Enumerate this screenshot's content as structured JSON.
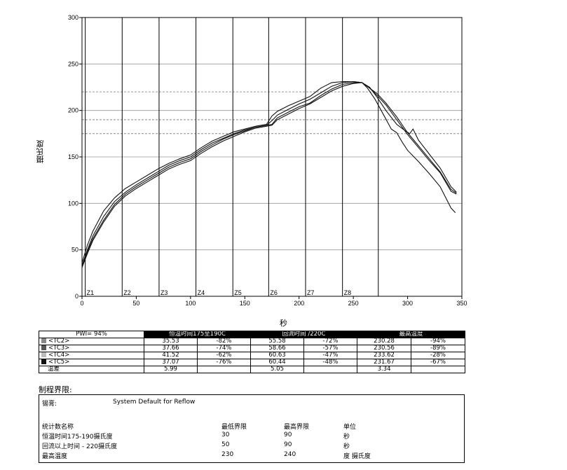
{
  "chart_data": {
    "type": "line",
    "title": "",
    "xlabel": "秒",
    "ylabel": "摄氏度",
    "xlim": [
      0,
      350
    ],
    "ylim": [
      0,
      300
    ],
    "x_ticks": [
      0,
      50,
      100,
      150,
      200,
      250,
      300,
      350
    ],
    "y_ticks": [
      0,
      50,
      100,
      150,
      200,
      250,
      300
    ],
    "zones": [
      {
        "label": "Z1",
        "x": 3
      },
      {
        "label": "Z2",
        "x": 37
      },
      {
        "label": "Z3",
        "x": 71
      },
      {
        "label": "Z4",
        "x": 105
      },
      {
        "label": "Z5",
        "x": 139
      },
      {
        "label": "Z6",
        "x": 172
      },
      {
        "label": "Z7",
        "x": 206
      },
      {
        "label": "Z8",
        "x": 240
      },
      {
        "label": "",
        "x": 273
      }
    ],
    "reference_lines": [
      175,
      190,
      220
    ],
    "series": [
      {
        "name": "<TC2>",
        "points": [
          [
            0,
            32
          ],
          [
            5,
            48
          ],
          [
            10,
            62
          ],
          [
            20,
            82
          ],
          [
            30,
            99
          ],
          [
            40,
            110
          ],
          [
            50,
            118
          ],
          [
            60,
            125
          ],
          [
            70,
            132
          ],
          [
            80,
            139
          ],
          [
            90,
            144
          ],
          [
            100,
            148
          ],
          [
            110,
            156
          ],
          [
            120,
            163
          ],
          [
            130,
            169
          ],
          [
            140,
            174
          ],
          [
            150,
            178
          ],
          [
            160,
            182
          ],
          [
            170,
            184
          ],
          [
            175,
            185
          ],
          [
            180,
            192
          ],
          [
            190,
            198
          ],
          [
            200,
            204
          ],
          [
            210,
            208
          ],
          [
            220,
            216
          ],
          [
            230,
            223
          ],
          [
            240,
            228
          ],
          [
            250,
            230
          ],
          [
            258,
            230
          ],
          [
            265,
            224
          ],
          [
            272,
            216
          ],
          [
            280,
            206
          ],
          [
            290,
            190
          ],
          [
            300,
            174
          ],
          [
            310,
            160
          ],
          [
            320,
            146
          ],
          [
            330,
            133
          ],
          [
            340,
            113
          ],
          [
            345,
            110
          ]
        ]
      },
      {
        "name": "<TC3>",
        "points": [
          [
            0,
            31
          ],
          [
            5,
            46
          ],
          [
            10,
            60
          ],
          [
            20,
            80
          ],
          [
            30,
            97
          ],
          [
            40,
            108
          ],
          [
            50,
            116
          ],
          [
            60,
            123
          ],
          [
            70,
            130
          ],
          [
            80,
            137
          ],
          [
            90,
            142
          ],
          [
            100,
            146
          ],
          [
            110,
            154
          ],
          [
            120,
            161
          ],
          [
            130,
            167
          ],
          [
            140,
            172
          ],
          [
            150,
            177
          ],
          [
            160,
            181
          ],
          [
            170,
            183
          ],
          [
            175,
            184
          ],
          [
            180,
            190
          ],
          [
            190,
            196
          ],
          [
            200,
            202
          ],
          [
            210,
            207
          ],
          [
            220,
            214
          ],
          [
            230,
            221
          ],
          [
            240,
            226
          ],
          [
            250,
            229
          ],
          [
            258,
            230
          ],
          [
            265,
            224
          ],
          [
            272,
            218
          ],
          [
            280,
            208
          ],
          [
            290,
            193
          ],
          [
            300,
            176
          ],
          [
            310,
            162
          ],
          [
            320,
            148
          ],
          [
            330,
            134
          ],
          [
            340,
            115
          ],
          [
            345,
            111
          ]
        ]
      },
      {
        "name": "<TC4>",
        "points": [
          [
            0,
            36
          ],
          [
            5,
            55
          ],
          [
            10,
            70
          ],
          [
            20,
            92
          ],
          [
            30,
            106
          ],
          [
            40,
            116
          ],
          [
            50,
            123
          ],
          [
            60,
            130
          ],
          [
            70,
            137
          ],
          [
            80,
            143
          ],
          [
            90,
            148
          ],
          [
            100,
            152
          ],
          [
            110,
            160
          ],
          [
            120,
            167
          ],
          [
            130,
            172
          ],
          [
            140,
            177
          ],
          [
            150,
            180
          ],
          [
            160,
            183
          ],
          [
            170,
            185
          ],
          [
            175,
            194
          ],
          [
            180,
            199
          ],
          [
            190,
            205
          ],
          [
            200,
            210
          ],
          [
            210,
            215
          ],
          [
            220,
            224
          ],
          [
            230,
            230
          ],
          [
            240,
            231
          ],
          [
            250,
            231
          ],
          [
            258,
            230
          ],
          [
            263,
            224
          ],
          [
            270,
            212
          ],
          [
            278,
            195
          ],
          [
            285,
            180
          ],
          [
            290,
            176
          ],
          [
            295,
            166
          ],
          [
            300,
            157
          ],
          [
            310,
            145
          ],
          [
            320,
            132
          ],
          [
            330,
            118
          ],
          [
            340,
            95
          ],
          [
            344,
            90
          ]
        ]
      },
      {
        "name": "<TC5>",
        "points": [
          [
            0,
            33
          ],
          [
            5,
            50
          ],
          [
            10,
            65
          ],
          [
            20,
            86
          ],
          [
            30,
            102
          ],
          [
            40,
            112
          ],
          [
            50,
            120
          ],
          [
            60,
            127
          ],
          [
            70,
            134
          ],
          [
            80,
            141
          ],
          [
            90,
            146
          ],
          [
            100,
            150
          ],
          [
            110,
            158
          ],
          [
            120,
            165
          ],
          [
            130,
            170
          ],
          [
            140,
            175
          ],
          [
            150,
            179
          ],
          [
            160,
            182
          ],
          [
            170,
            184
          ],
          [
            176,
            190
          ],
          [
            180,
            195
          ],
          [
            190,
            201
          ],
          [
            200,
            207
          ],
          [
            210,
            212
          ],
          [
            220,
            219
          ],
          [
            230,
            226
          ],
          [
            240,
            230
          ],
          [
            250,
            231
          ],
          [
            258,
            230
          ],
          [
            265,
            225
          ],
          [
            272,
            214
          ],
          [
            280,
            200
          ],
          [
            290,
            185
          ],
          [
            298,
            178
          ],
          [
            302,
            175
          ],
          [
            305,
            180
          ],
          [
            310,
            168
          ],
          [
            320,
            153
          ],
          [
            330,
            138
          ],
          [
            340,
            118
          ],
          [
            345,
            112
          ]
        ]
      }
    ]
  },
  "table": {
    "pwi": "PWI= 94%",
    "headers": [
      "恒温时间175至190C",
      "回流时间 /220C",
      "最高温度"
    ],
    "rows": [
      {
        "name": "<TC2>",
        "color": "#888888",
        "v": [
          "35.53",
          "-82%",
          "55.58",
          "-72%",
          "230.28",
          "-94%"
        ]
      },
      {
        "name": "<TC3>",
        "color": "#555555",
        "v": [
          "37.66",
          "-74%",
          "58.66",
          "-57%",
          "230.56",
          "-89%"
        ]
      },
      {
        "name": "<TC4>",
        "color": "#bbbbbb",
        "v": [
          "41.52",
          "-62%",
          "60.63",
          "-47%",
          "233.62",
          "-28%"
        ]
      },
      {
        "name": "<TC5>",
        "color": "#111111",
        "v": [
          "37.07",
          "-76%",
          "60.44",
          "-48%",
          "231.67",
          "-67%"
        ]
      }
    ],
    "delta": {
      "label": "温差",
      "v": [
        "5.99",
        "",
        "5.05",
        "",
        "3.34",
        ""
      ]
    }
  },
  "limits": {
    "section_title": "制程界限:",
    "solder_label": "锡膏:",
    "solder_value": "System Default for Reflow",
    "headers": [
      "统计数名称",
      "最低界限",
      "最高界限",
      "单位"
    ],
    "rows": [
      [
        "恒温时间175-190摄氏度",
        "30",
        "90",
        "秒"
      ],
      [
        "回流以上时间 - 220摄氏度",
        "50",
        "90",
        "秒"
      ],
      [
        "最高温度",
        "230",
        "240",
        "度 摄氏度"
      ]
    ]
  }
}
